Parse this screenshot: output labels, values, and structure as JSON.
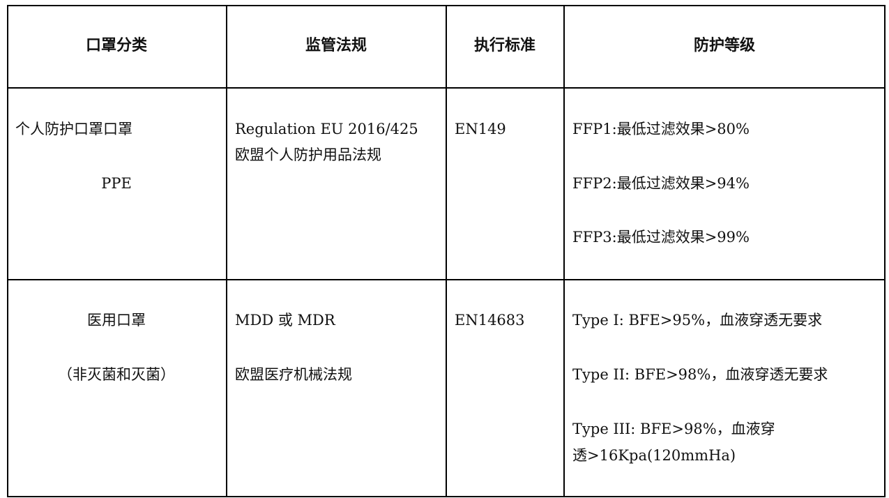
{
  "table": {
    "headers": [
      "口罩分类",
      "监管法规",
      "执行标准",
      "防护等级"
    ],
    "rows": [
      {
        "category": [
          "个人防护口罩口罩",
          "PPE"
        ],
        "regulation": [
          "Regulation EU 2016/425",
          "欧盟个人防护用品法规"
        ],
        "standard": "EN149",
        "levels": [
          "FFP1:最低过滤效果>80%",
          "FFP2:最低过滤效果>94%",
          "FFP3:最低过滤效果>99%"
        ]
      },
      {
        "category": [
          "医用口罩",
          "（非灭菌和灭菌）"
        ],
        "regulation": [
          "MDD 或 MDR",
          "欧盟医疗机械法规"
        ],
        "standard": "EN14683",
        "levels": [
          "Type I: BFE>95%，血液穿透无要求",
          "Type II: BFE>98%，血液穿透无要求",
          "Type III: BFE>98%，血液穿",
          "透>16Kpa(120mmHa)"
        ]
      }
    ]
  }
}
